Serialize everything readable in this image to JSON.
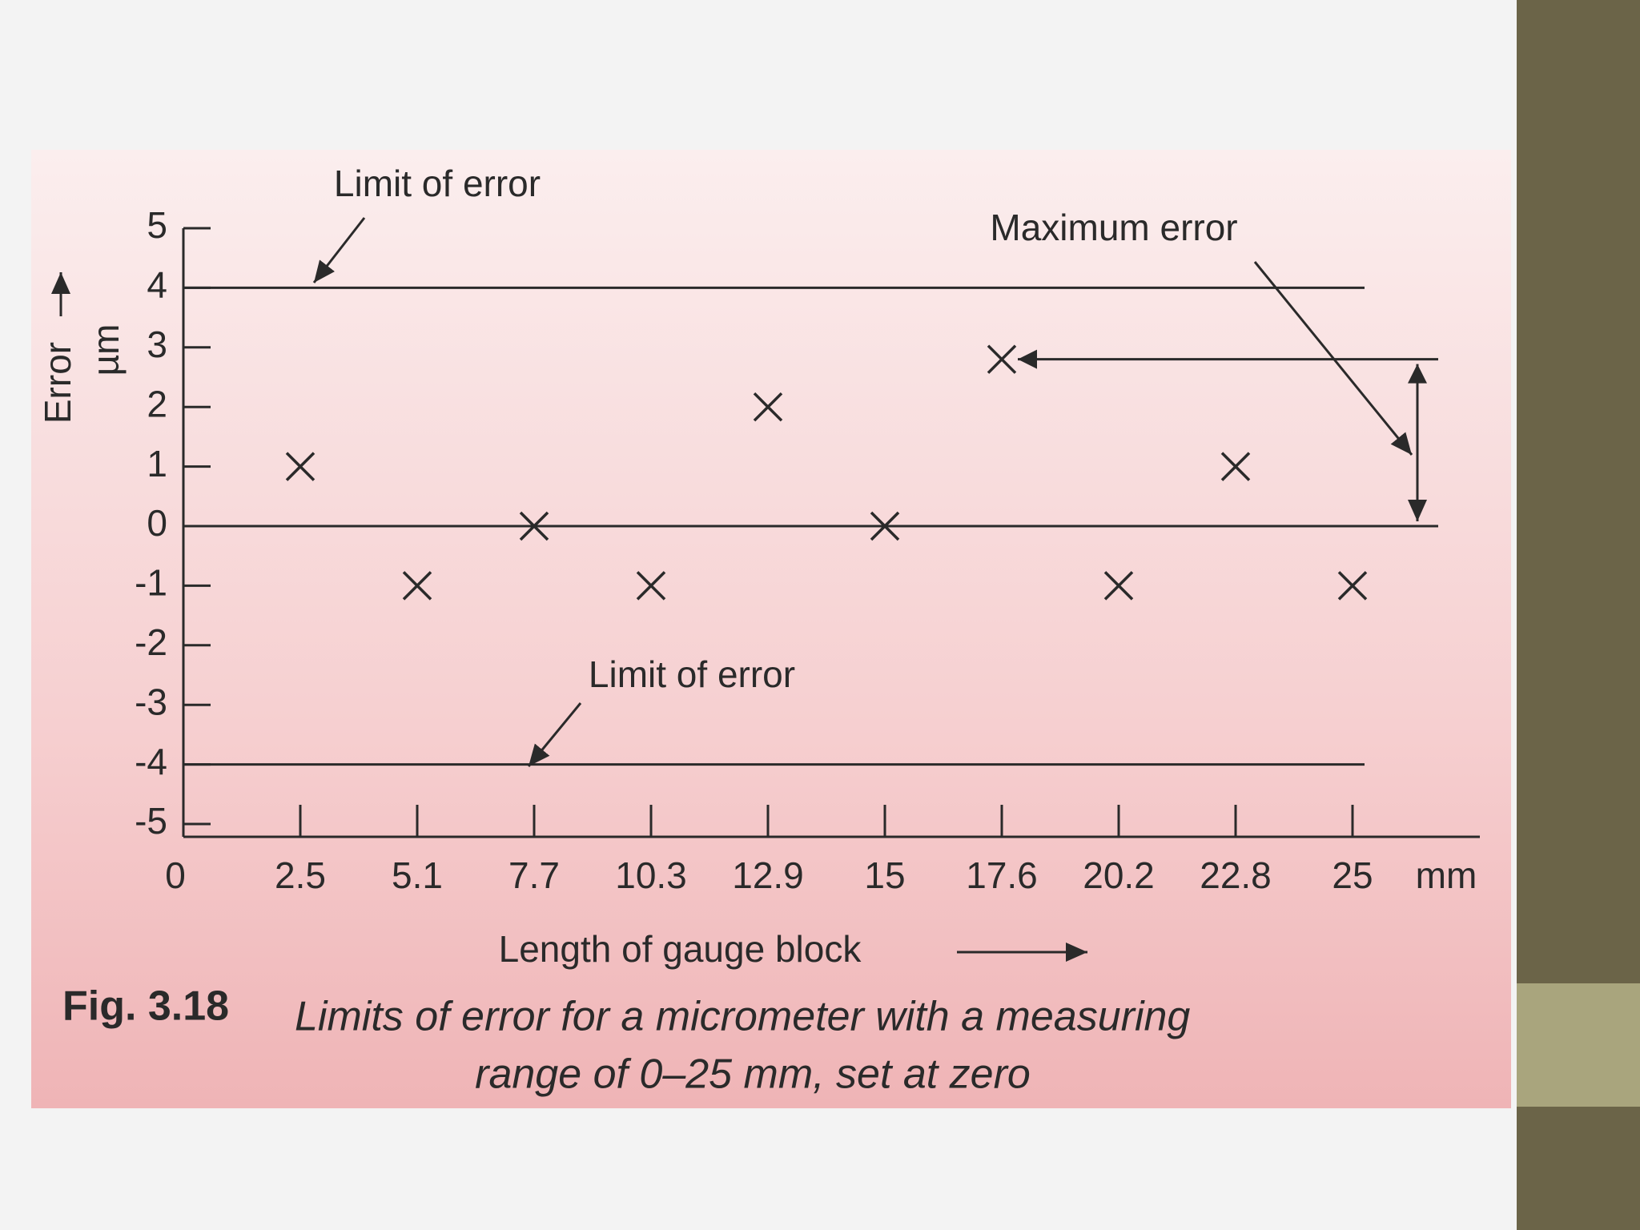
{
  "chart_data": {
    "type": "scatter",
    "y_label": "Error",
    "y_unit": "µm",
    "x_label": "Length of gauge block",
    "x_unit": "mm",
    "categories": [
      "0",
      "2.5",
      "5.1",
      "7.7",
      "10.3",
      "12.9",
      "15",
      "17.6",
      "20.2",
      "22.8",
      "25"
    ],
    "values": [
      null,
      1,
      -1,
      0,
      -1,
      2,
      0,
      2.8,
      -1,
      1,
      -1
    ],
    "color": "#2a2a2a",
    "ylim": [
      -5,
      5
    ],
    "yticks": [
      -5,
      -4,
      -3,
      -2,
      -1,
      0,
      1,
      2,
      3,
      4,
      5
    ],
    "limits": [
      4,
      -4
    ],
    "annotations": [
      "Limit of error",
      "Maximum error",
      "Limit of error"
    ],
    "caption_label": "Fig. 3.18",
    "caption": [
      "Limits of error for a micrometer with a measuring",
      "range of 0–25 mm, set at zero"
    ]
  }
}
